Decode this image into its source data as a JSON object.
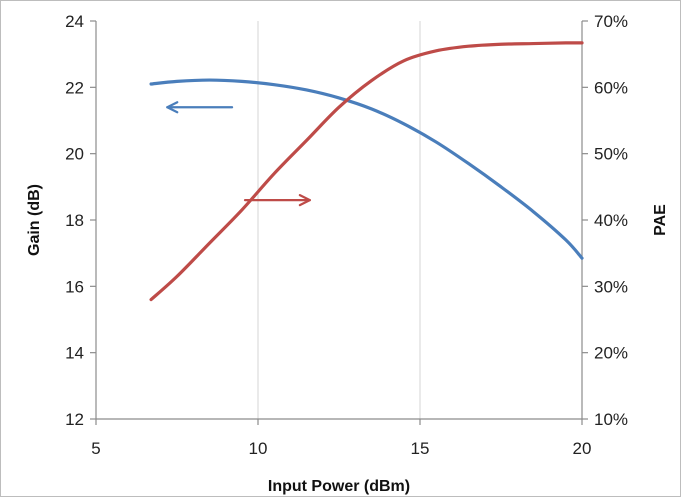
{
  "chart_data": {
    "type": "line",
    "title": "",
    "xlabel": "Input Power (dBm)",
    "ylabel_left": "Gain (dB)",
    "ylabel_right": "PAE",
    "xlim": [
      5,
      20
    ],
    "ylim_left": [
      12,
      24
    ],
    "ylim_right": [
      10,
      70
    ],
    "x_ticks": [
      5,
      10,
      15,
      20
    ],
    "x_tick_labels": [
      "5",
      "10",
      "15",
      "20"
    ],
    "y_left_ticks": [
      12,
      14,
      16,
      18,
      20,
      22,
      24
    ],
    "y_left_tick_labels": [
      "12",
      "14",
      "16",
      "18",
      "20",
      "22",
      "24"
    ],
    "y_right_ticks": [
      10,
      20,
      30,
      40,
      50,
      60,
      70
    ],
    "y_right_tick_labels": [
      "10%",
      "20%",
      "30%",
      "40%",
      "50%",
      "60%",
      "70%"
    ],
    "grid": {
      "vertical": true,
      "horizontal": false
    },
    "series": [
      {
        "axis": "left",
        "color": "#4A7EBB",
        "x": [
          6.7,
          7.5,
          8.5,
          9.5,
          10.5,
          11.5,
          12.5,
          13.5,
          14.5,
          15.5,
          16.5,
          17.5,
          18.5,
          19.5,
          20.0
        ],
        "values": [
          22.1,
          22.18,
          22.22,
          22.18,
          22.08,
          21.92,
          21.68,
          21.35,
          20.9,
          20.35,
          19.7,
          19.0,
          18.25,
          17.4,
          16.85
        ]
      },
      {
        "axis": "right",
        "color": "#BE4B48",
        "x": [
          6.7,
          7.5,
          8.5,
          9.5,
          10.5,
          11.5,
          12.5,
          13.5,
          14.5,
          15.5,
          16.5,
          17.5,
          18.5,
          19.5,
          20.0
        ],
        "values": [
          28.0,
          31.5,
          36.5,
          41.5,
          47.0,
          52.0,
          57.0,
          61.0,
          64.0,
          65.5,
          66.2,
          66.5,
          66.6,
          66.7,
          66.7
        ]
      }
    ],
    "annotations": [
      {
        "kind": "arrow",
        "direction": "left",
        "axis": "left",
        "color": "#4A7EBB",
        "x_start": 9.2,
        "x_end": 7.2,
        "y": 21.4
      },
      {
        "kind": "arrow",
        "direction": "right",
        "axis": "right",
        "color": "#BE4B48",
        "x_start": 9.6,
        "x_end": 11.6,
        "y": 43.0
      }
    ]
  }
}
